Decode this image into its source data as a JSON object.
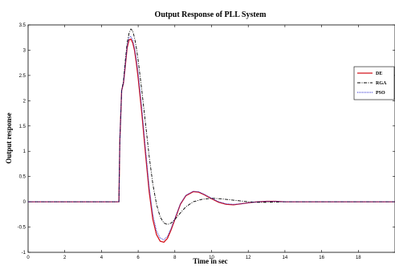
{
  "chart_data": {
    "type": "line",
    "title": "Output Response of PLL System",
    "xlabel": "Time in sec",
    "ylabel": "Output response",
    "xlim": [
      0,
      20
    ],
    "ylim": [
      -1,
      3.5
    ],
    "xticks": [
      "0",
      "2",
      "4",
      "6",
      "8",
      "10",
      "12",
      "14",
      "16",
      "18"
    ],
    "xtick_values": [
      0,
      2,
      4,
      6,
      8,
      10,
      12,
      14,
      16,
      18
    ],
    "yticks": [
      "-1",
      "-0.5",
      "0",
      "0.5",
      "1",
      "1.5",
      "2",
      "2.5",
      "3",
      "3.5"
    ],
    "ytick_values": [
      -1,
      -0.5,
      0,
      0.5,
      1,
      1.5,
      2,
      2.5,
      3,
      3.5
    ],
    "grid": false,
    "legend_position": "right",
    "series": [
      {
        "name": "DE",
        "color": "#d4141c",
        "style": "solid",
        "x": [
          0,
          4.95,
          5.0,
          5.1,
          5.2,
          5.3,
          5.4,
          5.5,
          5.6,
          5.7,
          5.8,
          5.9,
          6.0,
          6.2,
          6.4,
          6.6,
          6.8,
          7.0,
          7.2,
          7.4,
          7.6,
          7.8,
          8.0,
          8.3,
          8.6,
          9.0,
          9.3,
          9.6,
          10.0,
          10.4,
          10.8,
          11.2,
          11.6,
          12.0,
          12.5,
          13.0,
          13.5,
          14.0,
          15.0,
          16.0,
          20.0
        ],
        "y": [
          0,
          0,
          1.2,
          2.2,
          2.35,
          2.7,
          3.05,
          3.2,
          3.22,
          3.15,
          3.0,
          2.75,
          2.45,
          1.75,
          0.95,
          0.2,
          -0.35,
          -0.65,
          -0.78,
          -0.8,
          -0.72,
          -0.55,
          -0.35,
          -0.05,
          0.12,
          0.2,
          0.19,
          0.14,
          0.06,
          -0.01,
          -0.05,
          -0.06,
          -0.04,
          -0.02,
          0.0,
          0.01,
          0.01,
          0.0,
          0.0,
          0.0,
          0.0
        ]
      },
      {
        "name": "RGA",
        "color": "#000000",
        "style": "dashdot",
        "x": [
          0,
          4.95,
          5.0,
          5.1,
          5.2,
          5.3,
          5.4,
          5.5,
          5.6,
          5.7,
          5.8,
          5.9,
          6.0,
          6.2,
          6.4,
          6.6,
          6.8,
          7.0,
          7.2,
          7.4,
          7.6,
          7.8,
          8.0,
          8.3,
          8.6,
          9.0,
          9.5,
          10.0,
          10.5,
          11.0,
          11.5,
          12.0,
          12.5,
          13.0,
          14.0,
          15.0,
          16.0,
          20.0
        ],
        "y": [
          0,
          0,
          1.2,
          2.2,
          2.4,
          2.8,
          3.15,
          3.33,
          3.42,
          3.38,
          3.25,
          3.05,
          2.8,
          2.2,
          1.55,
          0.9,
          0.35,
          -0.05,
          -0.3,
          -0.42,
          -0.45,
          -0.42,
          -0.35,
          -0.22,
          -0.1,
          0.0,
          0.05,
          0.07,
          0.06,
          0.04,
          0.02,
          0.0,
          -0.01,
          -0.01,
          0.0,
          0.0,
          0.0,
          0.0
        ]
      },
      {
        "name": "PSO",
        "color": "#2222cc",
        "style": "dotted",
        "x": [
          0,
          4.95,
          5.0,
          5.1,
          5.2,
          5.3,
          5.4,
          5.5,
          5.6,
          5.7,
          5.8,
          5.9,
          6.0,
          6.2,
          6.4,
          6.6,
          6.8,
          7.0,
          7.2,
          7.4,
          7.6,
          7.8,
          8.0,
          8.3,
          8.6,
          9.0,
          9.3,
          9.6,
          10.0,
          10.4,
          10.8,
          11.2,
          11.6,
          12.0,
          12.5,
          13.0,
          13.5,
          14.0,
          15.0,
          16.0,
          20.0
        ],
        "y": [
          0,
          0,
          1.2,
          2.2,
          2.35,
          2.72,
          3.08,
          3.25,
          3.27,
          3.2,
          3.05,
          2.82,
          2.55,
          1.85,
          1.05,
          0.3,
          -0.25,
          -0.58,
          -0.72,
          -0.75,
          -0.68,
          -0.52,
          -0.33,
          -0.04,
          0.13,
          0.21,
          0.2,
          0.15,
          0.07,
          0.0,
          -0.04,
          -0.05,
          -0.04,
          -0.02,
          0.0,
          0.01,
          0.01,
          0.0,
          0.0,
          0.0,
          0.0
        ]
      }
    ]
  }
}
